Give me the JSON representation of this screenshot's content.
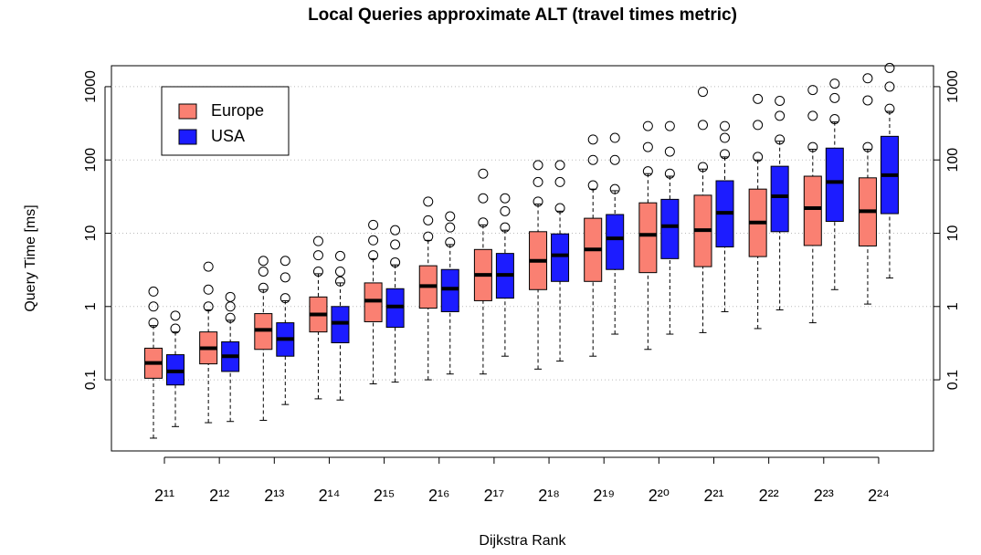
{
  "chart_data": {
    "type": "boxplot",
    "title": "Local Queries approximate ALT (travel times metric)",
    "xlabel": "Dijkstra Rank",
    "ylabel": "Query Time [ms]",
    "categories": [
      "2¹¹",
      "2¹²",
      "2¹³",
      "2¹⁴",
      "2¹⁵",
      "2¹⁶",
      "2¹⁷",
      "2¹⁸",
      "2¹⁹",
      "2²⁰",
      "2²¹",
      "2²²",
      "2²³",
      "2²⁴"
    ],
    "log_scale": true,
    "grid": true,
    "legend": "top-left",
    "ylim": [
      0.0107,
      1930
    ],
    "yticks": [
      0.1,
      1,
      10,
      100,
      1000
    ],
    "series": [
      {
        "name": "Europe",
        "color": "#fa8072",
        "low": [
          0.016,
          0.026,
          0.028,
          0.055,
          0.088,
          0.1,
          0.12,
          0.14,
          0.21,
          0.26,
          0.44,
          0.5,
          0.6,
          1.08
        ],
        "q1": [
          0.105,
          0.165,
          0.26,
          0.45,
          0.62,
          0.95,
          1.2,
          1.7,
          2.2,
          2.9,
          3.5,
          4.8,
          6.8,
          6.7
        ],
        "median": [
          0.17,
          0.27,
          0.48,
          0.78,
          1.2,
          1.9,
          2.7,
          4.2,
          6,
          9.5,
          11,
          14,
          22,
          20
        ],
        "q3": [
          0.27,
          0.45,
          0.8,
          1.35,
          2.1,
          3.6,
          6,
          10.5,
          16,
          26,
          33,
          40,
          60,
          57
        ],
        "high": [
          0.55,
          0.9,
          1.7,
          2.8,
          4.5,
          8,
          13,
          25,
          40,
          65,
          75,
          100,
          140,
          140
        ],
        "outliers": [
          [
            0.6,
            1.0,
            1.6
          ],
          [
            1.0,
            1.7,
            3.5
          ],
          [
            1.8,
            3,
            4.2
          ],
          [
            3,
            5,
            7.8
          ],
          [
            5,
            8,
            13
          ],
          [
            9,
            15,
            27
          ],
          [
            14,
            30,
            65
          ],
          [
            27,
            50,
            85
          ],
          [
            45,
            100,
            190
          ],
          [
            70,
            150,
            290
          ],
          [
            80,
            300,
            850
          ],
          [
            110,
            300,
            680
          ],
          [
            150,
            400,
            900
          ],
          [
            150,
            650,
            1300
          ]
        ]
      },
      {
        "name": "USA",
        "color": "#1c1cff",
        "low": [
          0.023,
          0.027,
          0.046,
          0.053,
          0.093,
          0.12,
          0.21,
          0.18,
          0.42,
          0.42,
          0.85,
          0.9,
          1.7,
          2.45
        ],
        "q1": [
          0.085,
          0.13,
          0.21,
          0.32,
          0.52,
          0.85,
          1.3,
          2.2,
          3.2,
          4.5,
          6.5,
          10.5,
          14.5,
          18.5
        ],
        "median": [
          0.13,
          0.21,
          0.36,
          0.6,
          1.0,
          1.75,
          2.7,
          5,
          8.5,
          12.5,
          19,
          32,
          50,
          62
        ],
        "q3": [
          0.22,
          0.33,
          0.6,
          1.0,
          1.75,
          3.2,
          5.3,
          9.8,
          18,
          29,
          52,
          82,
          145,
          210
        ],
        "high": [
          0.45,
          0.65,
          1.2,
          2.1,
          3.7,
          7,
          11,
          20,
          38,
          60,
          110,
          180,
          330,
          460
        ],
        "outliers": [
          [
            0.5,
            0.75
          ],
          [
            0.7,
            1.0,
            1.35
          ],
          [
            1.3,
            2.5,
            4.2
          ],
          [
            2.2,
            3,
            4.9
          ],
          [
            4,
            7,
            11
          ],
          [
            7.5,
            12,
            17
          ],
          [
            12,
            20,
            30
          ],
          [
            22,
            50,
            85
          ],
          [
            40,
            100,
            200
          ],
          [
            65,
            130,
            290
          ],
          [
            120,
            200,
            290
          ],
          [
            190,
            400,
            640
          ],
          [
            360,
            700,
            1100
          ],
          [
            500,
            1000,
            1800
          ]
        ]
      }
    ]
  }
}
